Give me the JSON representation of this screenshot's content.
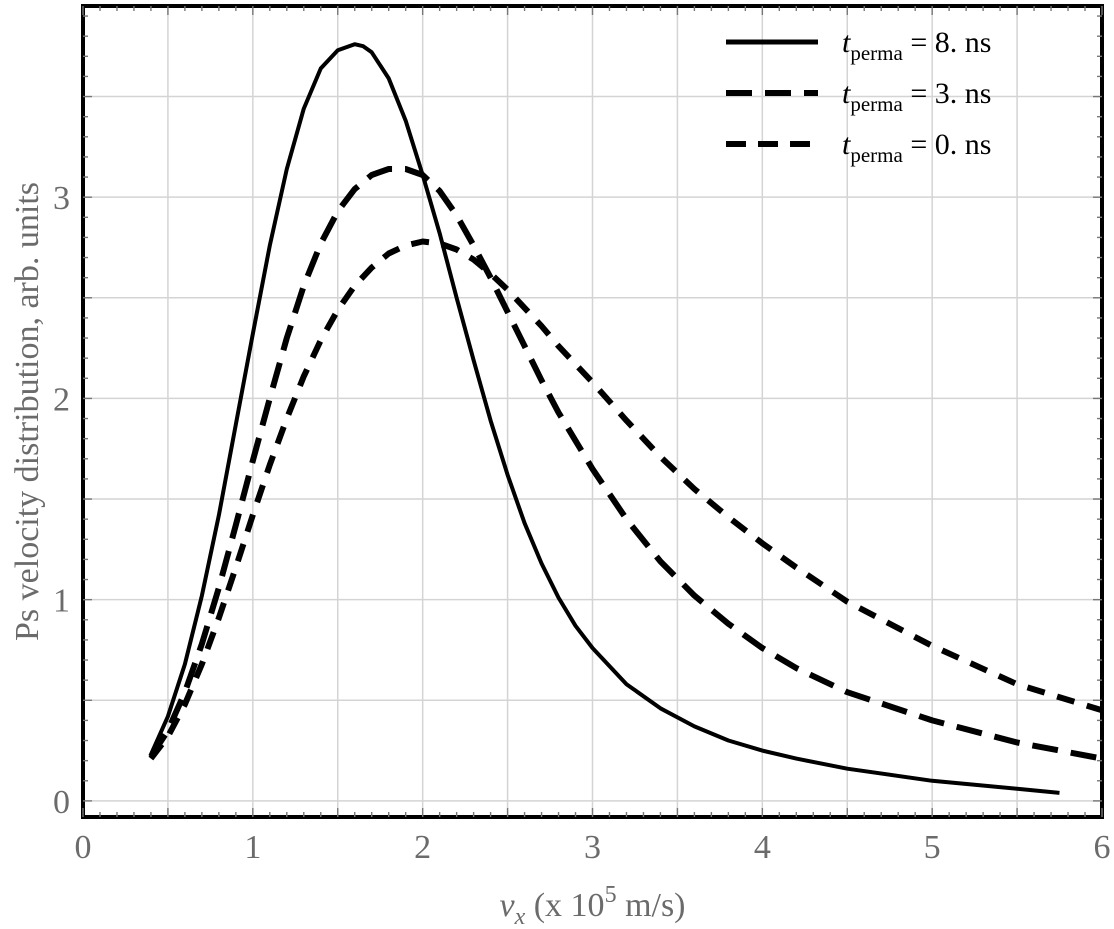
{
  "chart_data": {
    "type": "line",
    "xlabel": {
      "var": "v",
      "sub": "x",
      "pre": " (x 10",
      "sup": "5",
      "post": " m/s)"
    },
    "ylabel": "Ps velocity distribution, arb. units",
    "xlim": [
      0,
      6
    ],
    "ylim": [
      -0.08,
      3.95
    ],
    "x_ticks": [
      0,
      1,
      2,
      3,
      4,
      5,
      6
    ],
    "y_ticks": [
      0,
      1,
      2,
      3
    ],
    "grid": true,
    "legend_position": "top-right",
    "series": [
      {
        "name": "t_perma = 8. ns",
        "legend": {
          "var": "t",
          "sub": "perma",
          "rest": " = 8. ns"
        },
        "style": "solid",
        "x": [
          0.4,
          0.5,
          0.6,
          0.7,
          0.8,
          0.9,
          1.0,
          1.1,
          1.2,
          1.3,
          1.4,
          1.5,
          1.6,
          1.65,
          1.7,
          1.8,
          1.9,
          2.0,
          2.1,
          2.2,
          2.3,
          2.4,
          2.5,
          2.6,
          2.7,
          2.8,
          2.9,
          3.0,
          3.2,
          3.4,
          3.6,
          3.8,
          4.0,
          4.2,
          4.5,
          5.0,
          5.5,
          5.75
        ],
        "y": [
          0.23,
          0.42,
          0.68,
          1.02,
          1.42,
          1.87,
          2.32,
          2.76,
          3.14,
          3.44,
          3.64,
          3.73,
          3.76,
          3.75,
          3.72,
          3.59,
          3.38,
          3.11,
          2.82,
          2.5,
          2.19,
          1.89,
          1.62,
          1.38,
          1.18,
          1.01,
          0.87,
          0.76,
          0.58,
          0.46,
          0.37,
          0.3,
          0.25,
          0.21,
          0.16,
          0.1,
          0.06,
          0.04
        ]
      },
      {
        "name": "t_perma = 3. ns",
        "legend": {
          "var": "t",
          "sub": "perma",
          "rest": " = 3. ns"
        },
        "style": "long-dash",
        "x": [
          0.4,
          0.5,
          0.6,
          0.7,
          0.8,
          0.9,
          1.0,
          1.1,
          1.2,
          1.3,
          1.4,
          1.5,
          1.6,
          1.7,
          1.8,
          1.9,
          2.0,
          2.1,
          2.2,
          2.3,
          2.4,
          2.5,
          2.6,
          2.7,
          2.8,
          2.9,
          3.0,
          3.2,
          3.4,
          3.6,
          3.8,
          4.0,
          4.2,
          4.5,
          5.0,
          5.5,
          6.0
        ],
        "y": [
          0.22,
          0.35,
          0.54,
          0.78,
          1.06,
          1.37,
          1.69,
          2.0,
          2.3,
          2.56,
          2.77,
          2.93,
          3.04,
          3.11,
          3.14,
          3.14,
          3.11,
          3.03,
          2.91,
          2.76,
          2.6,
          2.43,
          2.26,
          2.09,
          1.93,
          1.79,
          1.65,
          1.4,
          1.19,
          1.02,
          0.88,
          0.76,
          0.66,
          0.54,
          0.4,
          0.29,
          0.21
        ]
      },
      {
        "name": "t_perma = 0. ns",
        "legend": {
          "var": "t",
          "sub": "perma",
          "rest": " = 0. ns"
        },
        "style": "dash-dot",
        "x": [
          0.4,
          0.5,
          0.6,
          0.7,
          0.8,
          0.9,
          1.0,
          1.1,
          1.2,
          1.3,
          1.4,
          1.5,
          1.6,
          1.7,
          1.8,
          1.9,
          2.0,
          2.1,
          2.2,
          2.3,
          2.4,
          2.5,
          2.6,
          2.7,
          2.8,
          2.9,
          3.0,
          3.2,
          3.4,
          3.6,
          3.8,
          4.0,
          4.2,
          4.5,
          5.0,
          5.5,
          6.0
        ],
        "y": [
          0.21,
          0.32,
          0.48,
          0.68,
          0.91,
          1.16,
          1.42,
          1.67,
          1.9,
          2.11,
          2.29,
          2.44,
          2.56,
          2.65,
          2.72,
          2.76,
          2.78,
          2.77,
          2.74,
          2.69,
          2.62,
          2.54,
          2.45,
          2.36,
          2.26,
          2.17,
          2.08,
          1.89,
          1.71,
          1.55,
          1.41,
          1.28,
          1.16,
          0.99,
          0.77,
          0.58,
          0.45
        ]
      }
    ]
  }
}
